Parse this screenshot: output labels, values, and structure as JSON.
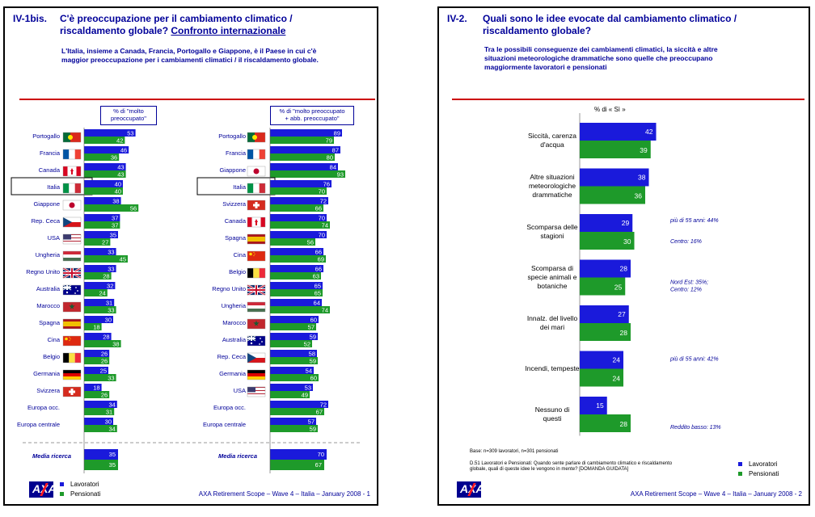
{
  "colors": {
    "blue": "#1a1adb",
    "green": "#1e9a2a",
    "navy": "#000099",
    "red": "#cc0000"
  },
  "slide1": {
    "code": "IV-1bis.",
    "title_line1": "C'è preoccupazione per il cambiamento climatico /",
    "title_line2_plain": "riscaldamento globale? ",
    "title_line2_underlined": "Confronto internazionale",
    "subtitle_line1": "L'Italia, insieme a Canada, Francia, Portogallo e Giappone, è il Paese in cui c'è",
    "subtitle_line2": "maggior preoccupazione per i cambiamenti climatici / il riscaldamento globale.",
    "left_header_line1": "% di \"molto",
    "left_header_line2": "preoccupato\"",
    "right_header_line1": "% di \"molto preoccupato",
    "right_header_line2": "+ abb. preoccupato\"",
    "legend_workers": "Lavoratori",
    "legend_retirees": "Pensionati",
    "footer": "AXA Retirement Scope – Wave 4 – Italia –  January 2008 - 1",
    "logo": "AXA"
  },
  "slide2": {
    "code": "IV-2.",
    "title_line1": "Quali sono le idee evocate dal cambiamento climatico /",
    "title_line2": "riscaldamento globale?",
    "subtitle_line1": "Tra le possibili conseguenze dei cambiamenti climatici, la siccità e altre",
    "subtitle_line2": "situazioni meteorologiche drammatiche sono quelle che preoccupano",
    "subtitle_line3": "maggiormente lavoratori e pensionati",
    "pct_label": "% di « Sì »",
    "base_note": "Base: n=309 lavoratori, n=301 pensionati",
    "question_note1": "D.51 Lavoratori e Pensionati: Quando sente parlare di cambiamento climatico e riscaldamento",
    "question_note2": "globale, quali di queste idee le vengono in mente? [DOMANDA GUIDATA]",
    "legend_workers": "Lavoratori",
    "legend_retirees": "Pensionati",
    "footer": "AXA Retirement Scope – Wave 4 – Italia –  January 2008 - 2",
    "logo": "AXA"
  },
  "chart_data": [
    {
      "type": "bar",
      "orientation": "horizontal",
      "title": "% di \"molto preoccupato\"",
      "series": [
        {
          "name": "Lavoratori"
        },
        {
          "name": "Pensionati"
        }
      ],
      "rows": [
        {
          "label": "Portogallo",
          "flag": "pt",
          "w": 53,
          "p": 42
        },
        {
          "label": "Francia",
          "flag": "fr",
          "w": 46,
          "p": 36
        },
        {
          "label": "Canada",
          "flag": "ca",
          "w": 43,
          "p": 43
        },
        {
          "label": "Italia",
          "flag": "it",
          "w": 40,
          "p": 40,
          "highlight": true
        },
        {
          "label": "Giappone",
          "flag": "jp",
          "w": 38,
          "p": 56
        },
        {
          "label": "Rep. Ceca",
          "flag": "cz",
          "w": 37,
          "p": 37
        },
        {
          "label": "USA",
          "flag": "us",
          "w": 35,
          "p": 27
        },
        {
          "label": "Ungheria",
          "flag": "hu",
          "w": 33,
          "p": 45
        },
        {
          "label": "Regno Unito",
          "flag": "uk",
          "w": 33,
          "p": 28
        },
        {
          "label": "Australia",
          "flag": "au",
          "w": 32,
          "p": 24
        },
        {
          "label": "Marocco",
          "flag": "ma",
          "w": 31,
          "p": 33
        },
        {
          "label": "Spagna",
          "flag": "es",
          "w": 30,
          "p": 18
        },
        {
          "label": "Cina",
          "flag": "cn",
          "w": 28,
          "p": 38
        },
        {
          "label": "Belgio",
          "flag": "be",
          "w": 26,
          "p": 26
        },
        {
          "label": "Germania",
          "flag": "de",
          "w": 25,
          "p": 33
        },
        {
          "label": "Svizzera",
          "flag": "ch",
          "w": 18,
          "p": 26
        },
        {
          "label": "Europa occ.",
          "flag": "",
          "w": 34,
          "p": 31
        },
        {
          "label": "Europa centrale",
          "flag": "",
          "w": 30,
          "p": 34
        }
      ],
      "average": {
        "label": "Media ricerca",
        "w": 35,
        "p": 35
      }
    },
    {
      "type": "bar",
      "orientation": "horizontal",
      "title": "% di \"molto preoccupato + abb. preoccupato\"",
      "series": [
        {
          "name": "Lavoratori"
        },
        {
          "name": "Pensionati"
        }
      ],
      "rows": [
        {
          "label": "Portogallo",
          "flag": "pt",
          "w": 89,
          "p": 79
        },
        {
          "label": "Francia",
          "flag": "fr",
          "w": 87,
          "p": 80
        },
        {
          "label": "Giappone",
          "flag": "jp",
          "w": 84,
          "p": 93
        },
        {
          "label": "Italia",
          "flag": "it",
          "w": 76,
          "p": 70,
          "highlight": true
        },
        {
          "label": "Svizzera",
          "flag": "ch",
          "w": 72,
          "p": 66
        },
        {
          "label": "Canada",
          "flag": "ca",
          "w": 70,
          "p": 74
        },
        {
          "label": "Spagna",
          "flag": "es",
          "w": 70,
          "p": 56
        },
        {
          "label": "Cina",
          "flag": "cn",
          "w": 66,
          "p": 69
        },
        {
          "label": "Belgio",
          "flag": "be",
          "w": 66,
          "p": 63
        },
        {
          "label": "Regno Unito",
          "flag": "uk",
          "w": 65,
          "p": 65
        },
        {
          "label": "Ungheria",
          "flag": "hu",
          "w": 64,
          "p": 74
        },
        {
          "label": "Marocco",
          "flag": "ma",
          "w": 60,
          "p": 57
        },
        {
          "label": "Australia",
          "flag": "au",
          "w": 59,
          "p": 52
        },
        {
          "label": "Rep. Ceca",
          "flag": "cz",
          "w": 58,
          "p": 59
        },
        {
          "label": "Germania",
          "flag": "de",
          "w": 54,
          "p": 60
        },
        {
          "label": "USA",
          "flag": "us",
          "w": 53,
          "p": 49
        },
        {
          "label": "Europa occ.",
          "flag": "",
          "w": 72,
          "p": 67
        },
        {
          "label": "Europa centrale",
          "flag": "",
          "w": 57,
          "p": 59
        }
      ],
      "average": {
        "label": "Media ricerca",
        "w": 70,
        "p": 67
      }
    },
    {
      "type": "bar",
      "orientation": "horizontal",
      "title": "% di « Sì »",
      "series": [
        {
          "name": "Lavoratori"
        },
        {
          "name": "Pensionati"
        }
      ],
      "rows": [
        {
          "label_lines": [
            "Siccità, carenza",
            "d'acqua"
          ],
          "w": 42,
          "p": 39,
          "notes": []
        },
        {
          "label_lines": [
            "Altre situazioni",
            "meteorologiche",
            "drammatiche"
          ],
          "w": 38,
          "p": 36,
          "notes": []
        },
        {
          "label_lines": [
            "Scomparsa delle",
            "stagioni"
          ],
          "w": 29,
          "p": 30,
          "notes": [
            "più di 55 anni: 44%",
            "Centro: 16%"
          ]
        },
        {
          "label_lines": [
            "Scomparsa di",
            "specie animali e",
            "botaniche"
          ],
          "w": 28,
          "p": 25,
          "notes": [
            "Nord Est: 35%;",
            "Centro: 12%"
          ]
        },
        {
          "label_lines": [
            "Innalz. del livello",
            "dei mari"
          ],
          "w": 27,
          "p": 28,
          "notes": []
        },
        {
          "label_lines": [
            "Incendi, tempeste"
          ],
          "w": 24,
          "p": 24,
          "notes": [
            "più di 55 anni: 42%"
          ]
        },
        {
          "label_lines": [
            "Nessuno di",
            "questi"
          ],
          "w": 15,
          "p": 28,
          "notes": [
            "Reddito basso: 13%"
          ]
        }
      ]
    }
  ]
}
